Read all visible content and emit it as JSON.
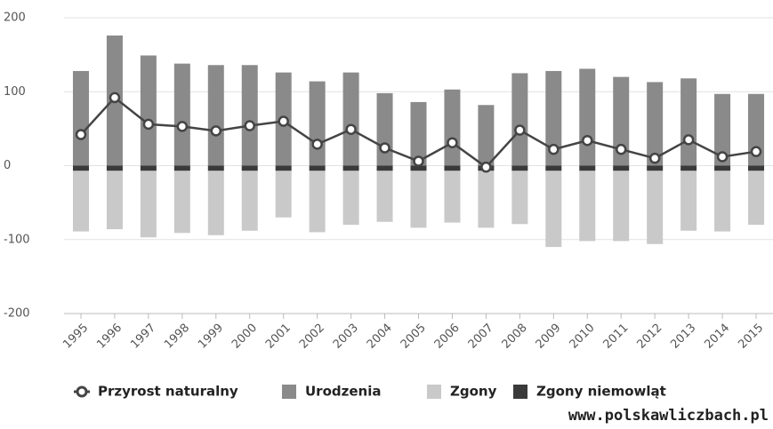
{
  "chart_data": {
    "type": "bar",
    "categories": [
      "1995",
      "1996",
      "1997",
      "1998",
      "1999",
      "2000",
      "2001",
      "2002",
      "2003",
      "2004",
      "2005",
      "2006",
      "2007",
      "2008",
      "2009",
      "2010",
      "2011",
      "2012",
      "2013",
      "2014",
      "2015"
    ],
    "series": [
      {
        "name": "Przyrost naturalny",
        "type": "line",
        "color": "#444444",
        "values": [
          42,
          92,
          56,
          53,
          47,
          54,
          60,
          29,
          49,
          24,
          6,
          31,
          -2,
          48,
          22,
          34,
          22,
          10,
          35,
          12,
          19
        ]
      },
      {
        "name": "Urodzenia",
        "color": "#8a8a8a",
        "values": [
          128,
          176,
          149,
          138,
          136,
          136,
          126,
          114,
          126,
          98,
          86,
          103,
          82,
          125,
          128,
          131,
          120,
          113,
          118,
          97,
          97
        ]
      },
      {
        "name": "Zgony",
        "color": "#c9c9c9",
        "values": [
          -82,
          -79,
          -90,
          -84,
          -87,
          -81,
          -63,
          -83,
          -73,
          -69,
          -77,
          -70,
          -77,
          -72,
          -103,
          -95,
          -95,
          -99,
          -81,
          -82,
          -73
        ]
      },
      {
        "name": "Zgony niemowląt",
        "color": "#3a3a3a",
        "values": [
          -7,
          -7,
          -7,
          -7,
          -7,
          -7,
          -7,
          -7,
          -7,
          -7,
          -7,
          -7,
          -7,
          -7,
          -7,
          -7,
          -7,
          -7,
          -7,
          -7,
          -7
        ]
      }
    ],
    "ylim": [
      -200,
      200
    ],
    "yticks": [
      -200,
      -100,
      0,
      100,
      200
    ],
    "grid": true,
    "legend": "bottom",
    "watermark": "www.polskawliczbach.pl"
  }
}
